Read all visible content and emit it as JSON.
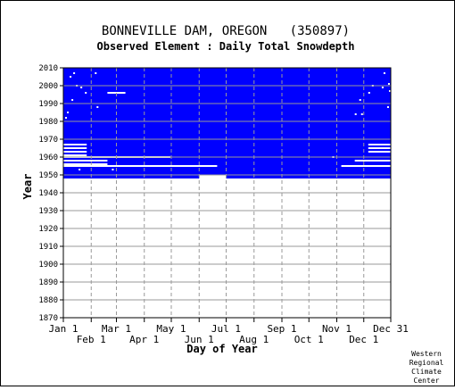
{
  "chart_data": {
    "type": "heatmap",
    "title": "BONNEVILLE DAM, OREGON   (350897)",
    "subtitle": "Observed Element : Daily Total Snowdepth",
    "xlabel": "Day of Year",
    "ylabel": "Year",
    "xlim": [
      1,
      365
    ],
    "ylim": [
      1870,
      2010
    ],
    "x_ticks_top_row": [
      {
        "label": "Jan 1",
        "day": 1
      },
      {
        "label": "Mar 1",
        "day": 60
      },
      {
        "label": "May 1",
        "day": 121
      },
      {
        "label": "Jul 1",
        "day": 182
      },
      {
        "label": "Sep 1",
        "day": 244
      },
      {
        "label": "Nov 1",
        "day": 305
      },
      {
        "label": "Dec 31",
        "day": 365
      }
    ],
    "x_ticks_bottom_row": [
      {
        "label": "Feb 1",
        "day": 32
      },
      {
        "label": "Apr 1",
        "day": 91
      },
      {
        "label": "Jun 1",
        "day": 152
      },
      {
        "label": "Aug 1",
        "day": 213
      },
      {
        "label": "Oct 1",
        "day": 274
      },
      {
        "label": "Dec 1",
        "day": 335
      }
    ],
    "y_ticks": [
      1870,
      1880,
      1890,
      1900,
      1910,
      1920,
      1930,
      1940,
      1950,
      1960,
      1970,
      1980,
      1990,
      2000,
      2010
    ],
    "grid": true,
    "legend": "none",
    "colors": {
      "observed": "#0000ff",
      "missing": "#ffffff",
      "grid": "#999999"
    },
    "observed_region": {
      "year_start": 1948,
      "year_end": 2010,
      "day_start": 1,
      "day_end": 365,
      "note_blocks": [
        {
          "year_start": 1948,
          "year_end": 1949,
          "day_start": 1,
          "day_end": 152
        },
        {
          "year_start": 1948,
          "year_end": 1949,
          "day_start": 182,
          "day_end": 365
        }
      ]
    },
    "missing_segments": [
      {
        "year": 1967,
        "day_start": 1,
        "day_end": 27
      },
      {
        "year": 1965,
        "day_start": 1,
        "day_end": 27
      },
      {
        "year": 1963,
        "day_start": 1,
        "day_end": 27
      },
      {
        "year": 1961,
        "day_start": 1,
        "day_end": 27
      },
      {
        "year": 1960,
        "day_start": 1,
        "day_end": 120
      },
      {
        "year": 1958,
        "day_start": 1,
        "day_end": 50
      },
      {
        "year": 1956,
        "day_start": 1,
        "day_end": 50
      },
      {
        "year": 1955,
        "day_start": 1,
        "day_end": 172
      },
      {
        "year": 1996,
        "day_start": 50,
        "day_end": 70
      },
      {
        "year": 1967,
        "day_start": 340,
        "day_end": 365
      },
      {
        "year": 1965,
        "day_start": 340,
        "day_end": 365
      },
      {
        "year": 1963,
        "day_start": 340,
        "day_end": 365
      },
      {
        "year": 1958,
        "day_start": 325,
        "day_end": 365
      },
      {
        "year": 1955,
        "day_start": 310,
        "day_end": 365
      }
    ],
    "missing_dots": [
      {
        "year": 2007,
        "day": 12
      },
      {
        "year": 2005,
        "day": 8
      },
      {
        "year": 2000,
        "day": 15
      },
      {
        "year": 1999,
        "day": 20
      },
      {
        "year": 1996,
        "day": 25
      },
      {
        "year": 1992,
        "day": 10
      },
      {
        "year": 1985,
        "day": 5
      },
      {
        "year": 1982,
        "day": 3
      },
      {
        "year": 1988,
        "day": 38
      },
      {
        "year": 2007,
        "day": 36
      },
      {
        "year": 1953,
        "day": 18
      },
      {
        "year": 1953,
        "day": 55
      },
      {
        "year": 2007,
        "day": 357
      },
      {
        "year": 2000,
        "day": 344
      },
      {
        "year": 1999,
        "day": 355
      },
      {
        "year": 1996,
        "day": 340
      },
      {
        "year": 1992,
        "day": 330
      },
      {
        "year": 1984,
        "day": 325
      },
      {
        "year": 1984,
        "day": 332
      },
      {
        "year": 2001,
        "day": 362
      },
      {
        "year": 1997,
        "day": 363
      },
      {
        "year": 1988,
        "day": 361
      },
      {
        "year": 1960,
        "day": 300
      }
    ]
  },
  "credit": [
    "Western",
    "Regional",
    "Climate",
    "Center"
  ]
}
